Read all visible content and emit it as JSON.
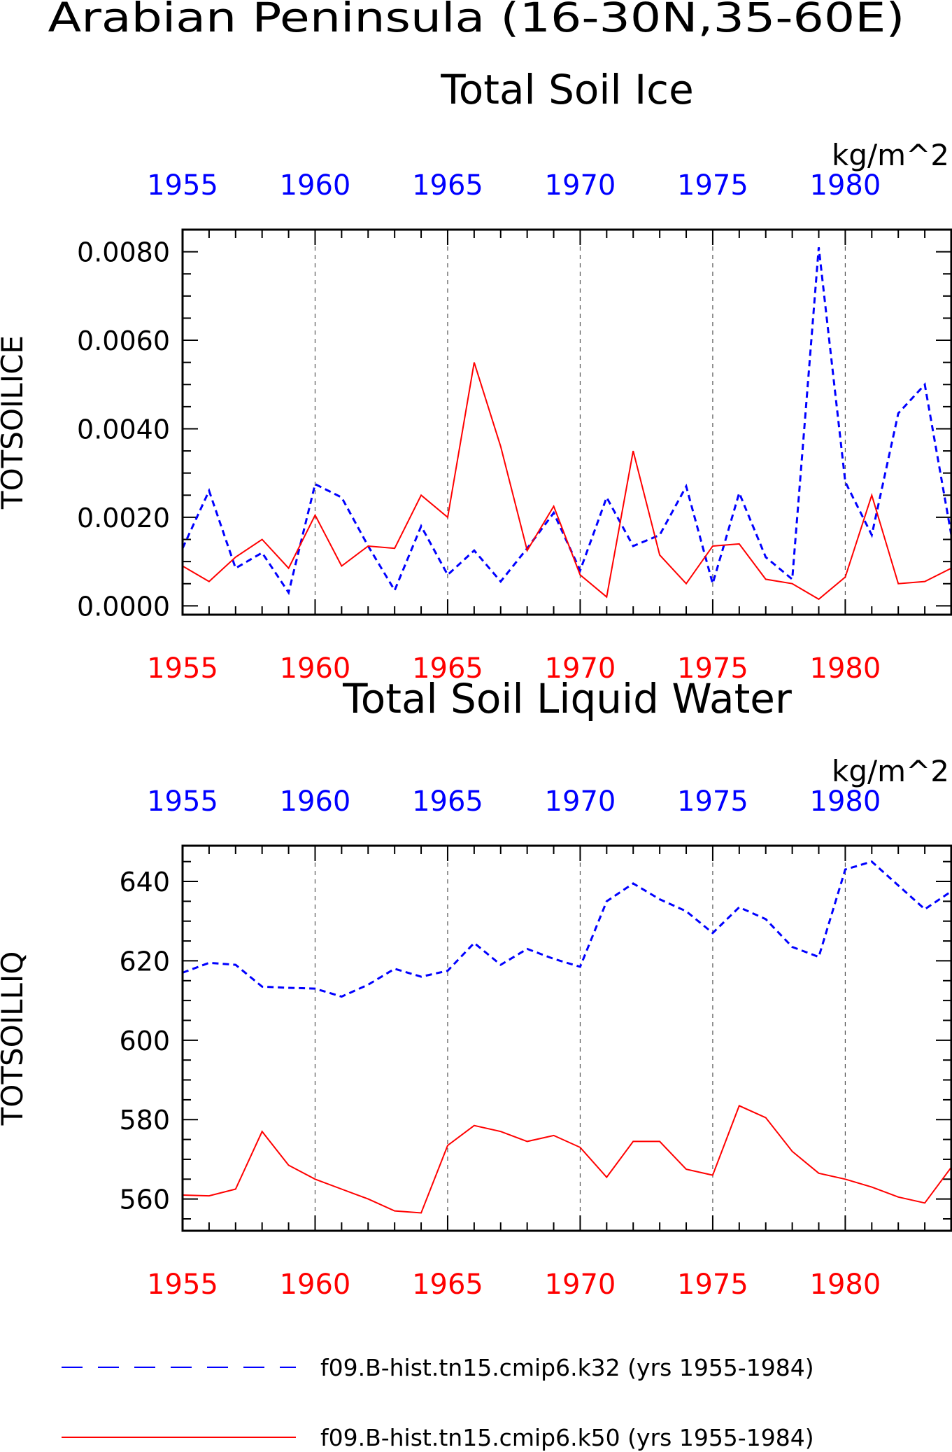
{
  "figure": {
    "title": "Arabian Peninsula (16-30N,35-60E)"
  },
  "colors": {
    "blue": "#0000ff",
    "red": "#ff0000",
    "axis": "#000000",
    "grid": "#555555"
  },
  "legend": {
    "entries": [
      {
        "label": "f09.B-hist.tn15.cmip6.k32 (yrs 1955-1984)",
        "color": "#0000ff",
        "style": "dashed"
      },
      {
        "label": "f09.B-hist.tn15.cmip6.k50 (yrs 1955-1984)",
        "color": "#ff0000",
        "style": "solid"
      }
    ]
  },
  "chart_data": [
    {
      "type": "line",
      "title": "Total Soil Ice",
      "units": "kg/m^2",
      "ylabel": "TOTSOILICE",
      "xlim": [
        1955,
        1984
      ],
      "ylim": [
        -0.0002,
        0.0085
      ],
      "yticks": [
        "0.0000",
        "0.0020",
        "0.0040",
        "0.0060",
        "0.0080"
      ],
      "xticks": [
        "1955",
        "1960",
        "1965",
        "1970",
        "1975",
        "1980"
      ],
      "x": [
        1955,
        1956,
        1957,
        1958,
        1959,
        1960,
        1961,
        1962,
        1963,
        1964,
        1965,
        1966,
        1967,
        1968,
        1969,
        1970,
        1971,
        1972,
        1973,
        1974,
        1975,
        1976,
        1977,
        1978,
        1979,
        1980,
        1981,
        1982,
        1983,
        1984
      ],
      "series": [
        {
          "name": "f09.B-hist.tn15.cmip6.k32 (yrs 1955-1984)",
          "color": "#0000ff",
          "style": "dashed",
          "values": [
            0.0013,
            0.0026,
            0.00085,
            0.0012,
            0.0003,
            0.00275,
            0.00245,
            0.00135,
            0.00035,
            0.0018,
            0.0007,
            0.00125,
            0.00055,
            0.0013,
            0.0021,
            0.0008,
            0.00245,
            0.00135,
            0.0016,
            0.0027,
            0.0005,
            0.00255,
            0.0011,
            0.0006,
            0.0081,
            0.0028,
            0.0016,
            0.00435,
            0.005,
            0.0016
          ]
        },
        {
          "name": "f09.B-hist.tn15.cmip6.k50 (yrs 1955-1984)",
          "color": "#ff0000",
          "style": "solid",
          "values": [
            0.0009,
            0.00055,
            0.0011,
            0.0015,
            0.00085,
            0.00205,
            0.0009,
            0.00135,
            0.0013,
            0.0025,
            0.002,
            0.0055,
            0.0036,
            0.00125,
            0.00225,
            0.0007,
            0.0002,
            0.0035,
            0.00115,
            0.0005,
            0.00135,
            0.0014,
            0.0006,
            0.0005,
            0.00015,
            0.00065,
            0.0025,
            0.0005,
            0.00055,
            0.00085
          ]
        }
      ]
    },
    {
      "type": "line",
      "title": "Total Soil Liquid Water",
      "units": "kg/m^2",
      "ylabel": "TOTSOILLIQ",
      "xlim": [
        1955,
        1984
      ],
      "ylim": [
        552,
        649
      ],
      "yticks": [
        "560",
        "580",
        "600",
        "620",
        "640"
      ],
      "xticks": [
        "1955",
        "1960",
        "1965",
        "1970",
        "1975",
        "1980"
      ],
      "x": [
        1955,
        1956,
        1957,
        1958,
        1959,
        1960,
        1961,
        1962,
        1963,
        1964,
        1965,
        1966,
        1967,
        1968,
        1969,
        1970,
        1971,
        1972,
        1973,
        1974,
        1975,
        1976,
        1977,
        1978,
        1979,
        1980,
        1981,
        1982,
        1983,
        1984
      ],
      "series": [
        {
          "name": "f09.B-hist.tn15.cmip6.k32 (yrs 1955-1984)",
          "color": "#0000ff",
          "style": "dashed",
          "values": [
            617,
            619.5,
            619,
            613.5,
            613.2,
            613,
            611,
            614,
            618,
            616,
            617.5,
            624.5,
            619,
            623,
            620.5,
            618.5,
            635,
            639.5,
            635.5,
            632.5,
            627,
            633.5,
            630.5,
            623.5,
            621,
            643,
            645,
            639,
            633,
            637.5
          ]
        },
        {
          "name": "f09.B-hist.tn15.cmip6.k50 (yrs 1955-1984)",
          "color": "#ff0000",
          "style": "solid",
          "values": [
            561,
            560.8,
            562.5,
            577,
            568.5,
            565,
            562.5,
            560,
            557,
            556.5,
            573.5,
            578.5,
            577,
            574.5,
            576,
            573,
            565.5,
            574.5,
            574.5,
            567.5,
            566,
            583.5,
            580.5,
            572,
            566.5,
            565,
            563,
            560.5,
            559,
            568
          ]
        }
      ]
    }
  ]
}
